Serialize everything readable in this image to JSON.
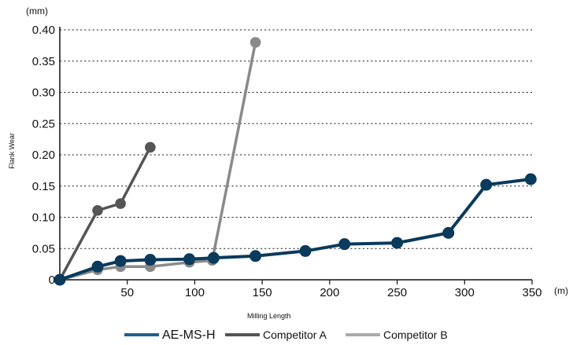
{
  "chart_data": {
    "type": "line",
    "xlabel": "Milling Length",
    "ylabel": "Flank Wear",
    "x_unit": "(m)",
    "y_unit": "(mm)",
    "xlim": [
      0,
      350
    ],
    "ylim": [
      0,
      0.4
    ],
    "x_ticks": [
      50,
      100,
      150,
      200,
      250,
      300,
      350
    ],
    "x_tick_labels": [
      "50",
      "100",
      "150",
      "200",
      "250",
      "300",
      "350"
    ],
    "y_ticks": [
      0,
      0.05,
      0.1,
      0.15,
      0.2,
      0.25,
      0.3,
      0.35,
      0.4
    ],
    "y_tick_labels": [
      "0",
      "0.05",
      "0.10",
      "0.15",
      "0.20",
      "0.25",
      "0.30",
      "0.35",
      "0.40"
    ],
    "grid": "horizontal dotted",
    "legend_position": "bottom",
    "series": [
      {
        "name": "AE-MS-H",
        "color": "#0a3a5c",
        "legend_color": "#1d5d96",
        "x": [
          0,
          28,
          45,
          67,
          96,
          114,
          145,
          182,
          211,
          250,
          288,
          316,
          349
        ],
        "y": [
          0,
          0.021,
          0.03,
          0.032,
          0.033,
          0.035,
          0.038,
          0.046,
          0.057,
          0.059,
          0.075,
          0.152,
          0.161
        ]
      },
      {
        "name": "Competitor A",
        "color": "#555555",
        "legend_color": "#555555",
        "x": [
          0,
          28,
          45,
          67
        ],
        "y": [
          0,
          0.111,
          0.122,
          0.212
        ]
      },
      {
        "name": "Competitor B",
        "color": "#8a8a8a",
        "legend_color": "#aaaaaa",
        "x": [
          0,
          28,
          45,
          67,
          96,
          113,
          145
        ],
        "y": [
          0,
          0.016,
          0.021,
          0.021,
          0.028,
          0.031,
          0.38
        ]
      }
    ]
  }
}
